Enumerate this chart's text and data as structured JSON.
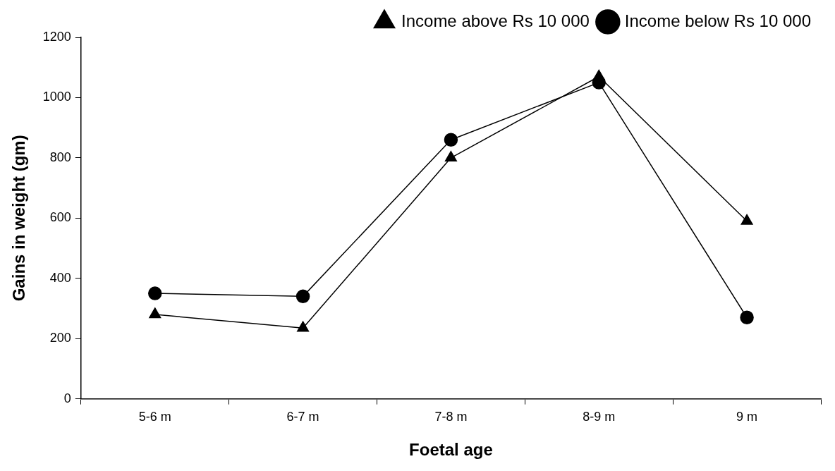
{
  "chart_data": {
    "type": "line",
    "xlabel": "Foetal age",
    "ylabel": "Gains in weight (gm)",
    "categories": [
      "5-6 m",
      "6-7 m",
      "7-8 m",
      "8-9 m",
      "9 m"
    ],
    "series": [
      {
        "name": "Income below Rs 10 000",
        "color": "#000000",
        "marker": "circle",
        "values": [
          350,
          340,
          860,
          1050,
          270
        ]
      },
      {
        "name": "Income above Rs 10 000",
        "color": "#000000",
        "marker": "triangle",
        "values": [
          280,
          235,
          800,
          1070,
          590
        ]
      }
    ],
    "ylim": [
      0,
      1200
    ],
    "yticks": [
      0,
      200,
      400,
      600,
      800,
      1000,
      1200
    ],
    "grid": false,
    "legend": "top right",
    "line_style": "solid"
  }
}
